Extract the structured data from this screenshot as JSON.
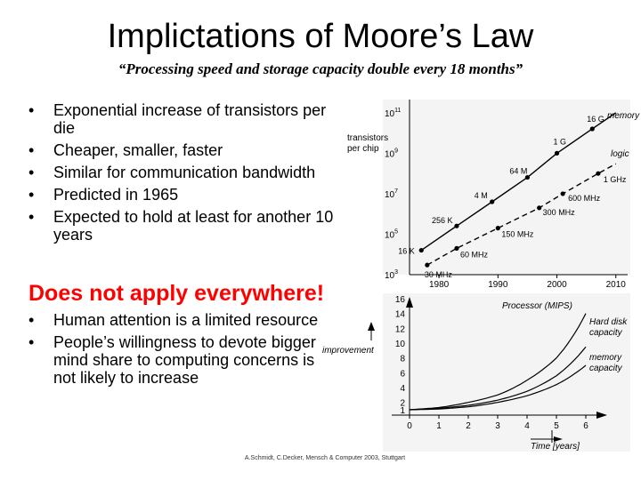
{
  "slide": {
    "title": "Implictations of Moore’s Law",
    "subtitle": "“Processing speed and storage capacity double every 18 months”",
    "bullets_top": [
      "Exponential increase of transistors per die",
      "Cheaper, smaller, faster",
      "Similar for communication bandwidth",
      "Predicted in 1965",
      "Expected to hold at least for another 10 years"
    ],
    "heading2": "Does not apply everywhere!",
    "bullets_bottom": [
      "Human attention is a limited resource",
      "People’s willingness to devote bigger mind share to computing concerns is not likely to increase"
    ],
    "footer": "A.Schmidt, C.Decker, Mensch & Computer 2003, Stuttgart"
  },
  "chart_data": [
    {
      "type": "line",
      "ylabel": "transistors per chip",
      "yscale": "log",
      "x_ticks": [
        "1980",
        "1990",
        "2000",
        "2010"
      ],
      "xlim": [
        1975,
        2012
      ],
      "y_ticks": [
        {
          "base": "10",
          "exp": "3",
          "value": 1000
        },
        {
          "base": "10",
          "exp": "5",
          "value": 100000
        },
        {
          "base": "10",
          "exp": "7",
          "value": 10000000
        },
        {
          "base": "10",
          "exp": "9",
          "value": 1000000000
        },
        {
          "base": "10",
          "exp": "11",
          "value": 100000000000
        }
      ],
      "ylim": [
        1000,
        300000000000
      ],
      "series": [
        {
          "name": "memory",
          "style": "solid",
          "points": [
            {
              "x": 1977,
              "y": 16000,
              "label": "16 K"
            },
            {
              "x": 1983,
              "y": 256000,
              "label": "256 K"
            },
            {
              "x": 1989,
              "y": 4000000,
              "label": "4 M"
            },
            {
              "x": 1995,
              "y": 64000000,
              "label": "64 M"
            },
            {
              "x": 2000,
              "y": 1000000000,
              "label": "1 G"
            },
            {
              "x": 2006,
              "y": 16000000000,
              "label": "16 G"
            }
          ],
          "line_end": {
            "x": 2010,
            "y": 100000000000
          }
        },
        {
          "name": "logic",
          "style": "dashed",
          "points": [
            {
              "x": 1978,
              "y": 3000,
              "label": "30 MHz"
            },
            {
              "x": 1983,
              "y": 20000,
              "label": "60 MHz"
            },
            {
              "x": 1990,
              "y": 200000,
              "label": "150 MHz"
            },
            {
              "x": 1997,
              "y": 2000000,
              "label": "300 MHz"
            },
            {
              "x": 2001,
              "y": 10000000,
              "label": "600 MHz"
            },
            {
              "x": 2007,
              "y": 100000000,
              "label": "1 GHz"
            }
          ],
          "line_end": {
            "x": 2010,
            "y": 300000000
          }
        }
      ]
    },
    {
      "type": "line",
      "ylabel": "improvement",
      "xlabel": "Time [years]",
      "x_ticks": [
        0,
        1,
        2,
        3,
        4,
        5,
        6
      ],
      "xlim": [
        0,
        6
      ],
      "y_ticks": [
        1,
        2,
        4,
        6,
        8,
        10,
        12,
        14,
        16
      ],
      "ylim": [
        1,
        16
      ],
      "series": [
        {
          "name": "Processor (MIPS)",
          "x": [
            0,
            1,
            2,
            3,
            4,
            5,
            6
          ],
          "y": [
            1,
            1.3,
            2,
            3,
            5,
            8,
            14
          ]
        },
        {
          "name": "Hard disk capacity",
          "x": [
            0,
            1,
            2,
            3,
            4,
            5,
            6
          ],
          "y": [
            1,
            1.2,
            1.6,
            2.3,
            3.5,
            5.6,
            9.5
          ]
        },
        {
          "name": "memory capacity",
          "x": [
            0,
            1,
            2,
            3,
            4,
            5,
            6
          ],
          "y": [
            1,
            1.1,
            1.4,
            2,
            2.9,
            4.4,
            7
          ]
        }
      ]
    }
  ]
}
